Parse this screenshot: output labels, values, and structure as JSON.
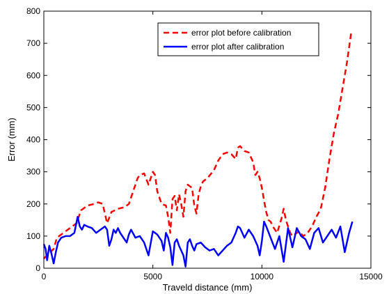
{
  "chart_data": {
    "type": "line",
    "title": "",
    "xlabel": "Traveld distance (mm)",
    "ylabel": "Error (mm)",
    "xlim": [
      0,
      15000
    ],
    "ylim": [
      0,
      800
    ],
    "xticks": [
      0,
      5000,
      10000,
      15000
    ],
    "yticks": [
      0,
      100,
      200,
      300,
      400,
      500,
      600,
      700,
      800
    ],
    "grid": false,
    "legend_position": "top-right",
    "series": [
      {
        "name": "error plot before calibration",
        "color": "#ff0000",
        "style": "dashed",
        "x": [
          0,
          150,
          300,
          450,
          600,
          900,
          1200,
          1500,
          1700,
          2000,
          2300,
          2500,
          2700,
          2900,
          3100,
          3400,
          3700,
          3900,
          4100,
          4300,
          4400,
          4600,
          4800,
          5000,
          5100,
          5200,
          5300,
          5400,
          5600,
          5700,
          5800,
          5900,
          6000,
          6100,
          6200,
          6300,
          6400,
          6500,
          6600,
          6800,
          6900,
          7000,
          7100,
          7200,
          7300,
          7500,
          7800,
          8000,
          8200,
          8400,
          8600,
          8800,
          8900,
          9000,
          9200,
          9400,
          9600,
          9700,
          9800,
          9900,
          10000,
          10100,
          10200,
          10300,
          10400,
          10500,
          10700,
          10900,
          11000,
          11100,
          11200,
          11300,
          11400,
          11500,
          11700,
          11900,
          12100,
          12300,
          12500,
          12700,
          12900,
          13100,
          13300,
          13500,
          13700,
          13900,
          14100
        ],
        "y": [
          30,
          40,
          50,
          60,
          95,
          110,
          125,
          140,
          180,
          195,
          200,
          205,
          200,
          140,
          175,
          185,
          190,
          200,
          240,
          280,
          290,
          295,
          260,
          300,
          290,
          240,
          220,
          200,
          195,
          160,
          110,
          215,
          225,
          180,
          230,
          200,
          160,
          240,
          260,
          250,
          195,
          170,
          230,
          255,
          270,
          280,
          305,
          335,
          355,
          360,
          355,
          340,
          375,
          380,
          365,
          360,
          330,
          290,
          300,
          280,
          250,
          210,
          175,
          150,
          145,
          130,
          110,
          155,
          185,
          150,
          130,
          110,
          100,
          105,
          115,
          100,
          110,
          130,
          160,
          185,
          250,
          340,
          420,
          480,
          560,
          640,
          735
        ]
      },
      {
        "name": "error plot after calibration",
        "color": "#0000ff",
        "style": "solid",
        "x": [
          0,
          80,
          150,
          250,
          350,
          450,
          550,
          650,
          800,
          1000,
          1200,
          1400,
          1550,
          1650,
          1750,
          1850,
          2000,
          2200,
          2400,
          2600,
          2800,
          2900,
          3000,
          3100,
          3200,
          3300,
          3400,
          3500,
          3600,
          3700,
          3800,
          3900,
          4000,
          4200,
          4400,
          4600,
          4800,
          5000,
          5200,
          5400,
          5500,
          5600,
          5700,
          5800,
          5900,
          6000,
          6100,
          6200,
          6300,
          6400,
          6500,
          6600,
          6700,
          6800,
          6900,
          7000,
          7200,
          7400,
          7600,
          7800,
          8000,
          8200,
          8400,
          8600,
          8800,
          8900,
          9000,
          9100,
          9200,
          9400,
          9600,
          9800,
          9900,
          10000,
          10100,
          10200,
          10400,
          10600,
          10800,
          11000,
          11200,
          11400,
          11600,
          11800,
          12000,
          12200,
          12400,
          12600,
          12800,
          13000,
          13200,
          13400,
          13600,
          13800,
          14000,
          14150
        ],
        "y": [
          75,
          60,
          25,
          70,
          45,
          15,
          50,
          80,
          95,
          100,
          100,
          110,
          160,
          130,
          120,
          135,
          130,
          125,
          110,
          120,
          130,
          120,
          70,
          90,
          120,
          110,
          125,
          110,
          100,
          90,
          80,
          105,
          120,
          95,
          100,
          80,
          40,
          115,
          105,
          85,
          55,
          110,
          95,
          65,
          10,
          80,
          90,
          70,
          55,
          40,
          5,
          80,
          90,
          70,
          55,
          75,
          80,
          65,
          55,
          60,
          40,
          55,
          70,
          80,
          110,
          130,
          125,
          110,
          95,
          120,
          100,
          70,
          40,
          85,
          145,
          130,
          95,
          60,
          100,
          20,
          125,
          65,
          125,
          100,
          90,
          60,
          110,
          125,
          80,
          100,
          120,
          95,
          130,
          50,
          110,
          145
        ]
      }
    ]
  }
}
